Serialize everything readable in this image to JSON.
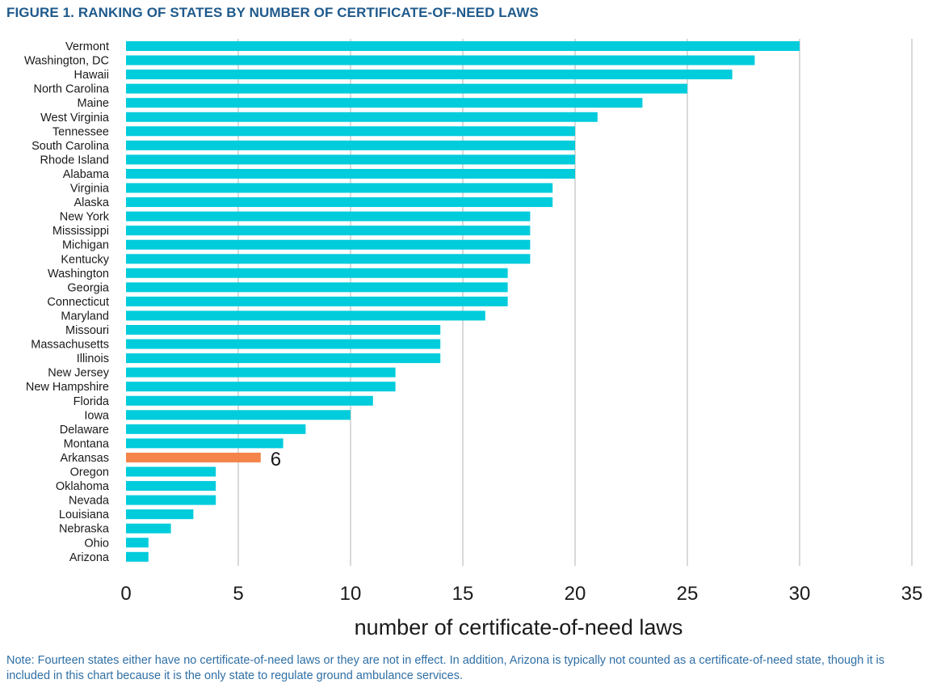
{
  "title": "FIGURE 1. RANKING OF STATES BY NUMBER OF CERTIFICATE-OF-NEED LAWS",
  "note": "Note: Fourteen states either have no certificate-of-need laws or they are not in effect. In addition, Arizona is typically not counted as a certificate-of-need state, though it is included in this chart because it is the only state to regulate ground ambulance services.",
  "colors": {
    "bar": "#00ccdc",
    "highlight": "#f5844a",
    "grid": "#d9d9d9",
    "title": "#1f5a8c",
    "note": "#2f6fa5"
  },
  "chart_data": {
    "type": "bar",
    "orientation": "horizontal",
    "categories": [
      "Vermont",
      "Washington, DC",
      "Hawaii",
      "North Carolina",
      "Maine",
      "West Virginia",
      "Tennessee",
      "South Carolina",
      "Rhode Island",
      "Alabama",
      "Virginia",
      "Alaska",
      "New York",
      "Mississippi",
      "Michigan",
      "Kentucky",
      "Washington",
      "Georgia",
      "Connecticut",
      "Maryland",
      "Missouri",
      "Massachusetts",
      "Illinois",
      "New Jersey",
      "New Hampshire",
      "Florida",
      "Iowa",
      "Delaware",
      "Montana",
      "Arkansas",
      "Oregon",
      "Oklahoma",
      "Nevada",
      "Louisiana",
      "Nebraska",
      "Ohio",
      "Arizona"
    ],
    "values": [
      30,
      28,
      27,
      25,
      23,
      21,
      20,
      20,
      20,
      20,
      19,
      19,
      18,
      18,
      18,
      18,
      17,
      17,
      17,
      16,
      14,
      14,
      14,
      12,
      12,
      11,
      10,
      8,
      7,
      6,
      4,
      4,
      4,
      3,
      2,
      1,
      1
    ],
    "highlight": {
      "category": "Arkansas",
      "label": "6"
    },
    "xlim": [
      0,
      35
    ],
    "xticks": [
      0,
      5,
      10,
      15,
      20,
      25,
      30,
      35
    ],
    "xlabel": "number of certificate-of-need laws",
    "ylabel": "",
    "grid": "vertical"
  }
}
